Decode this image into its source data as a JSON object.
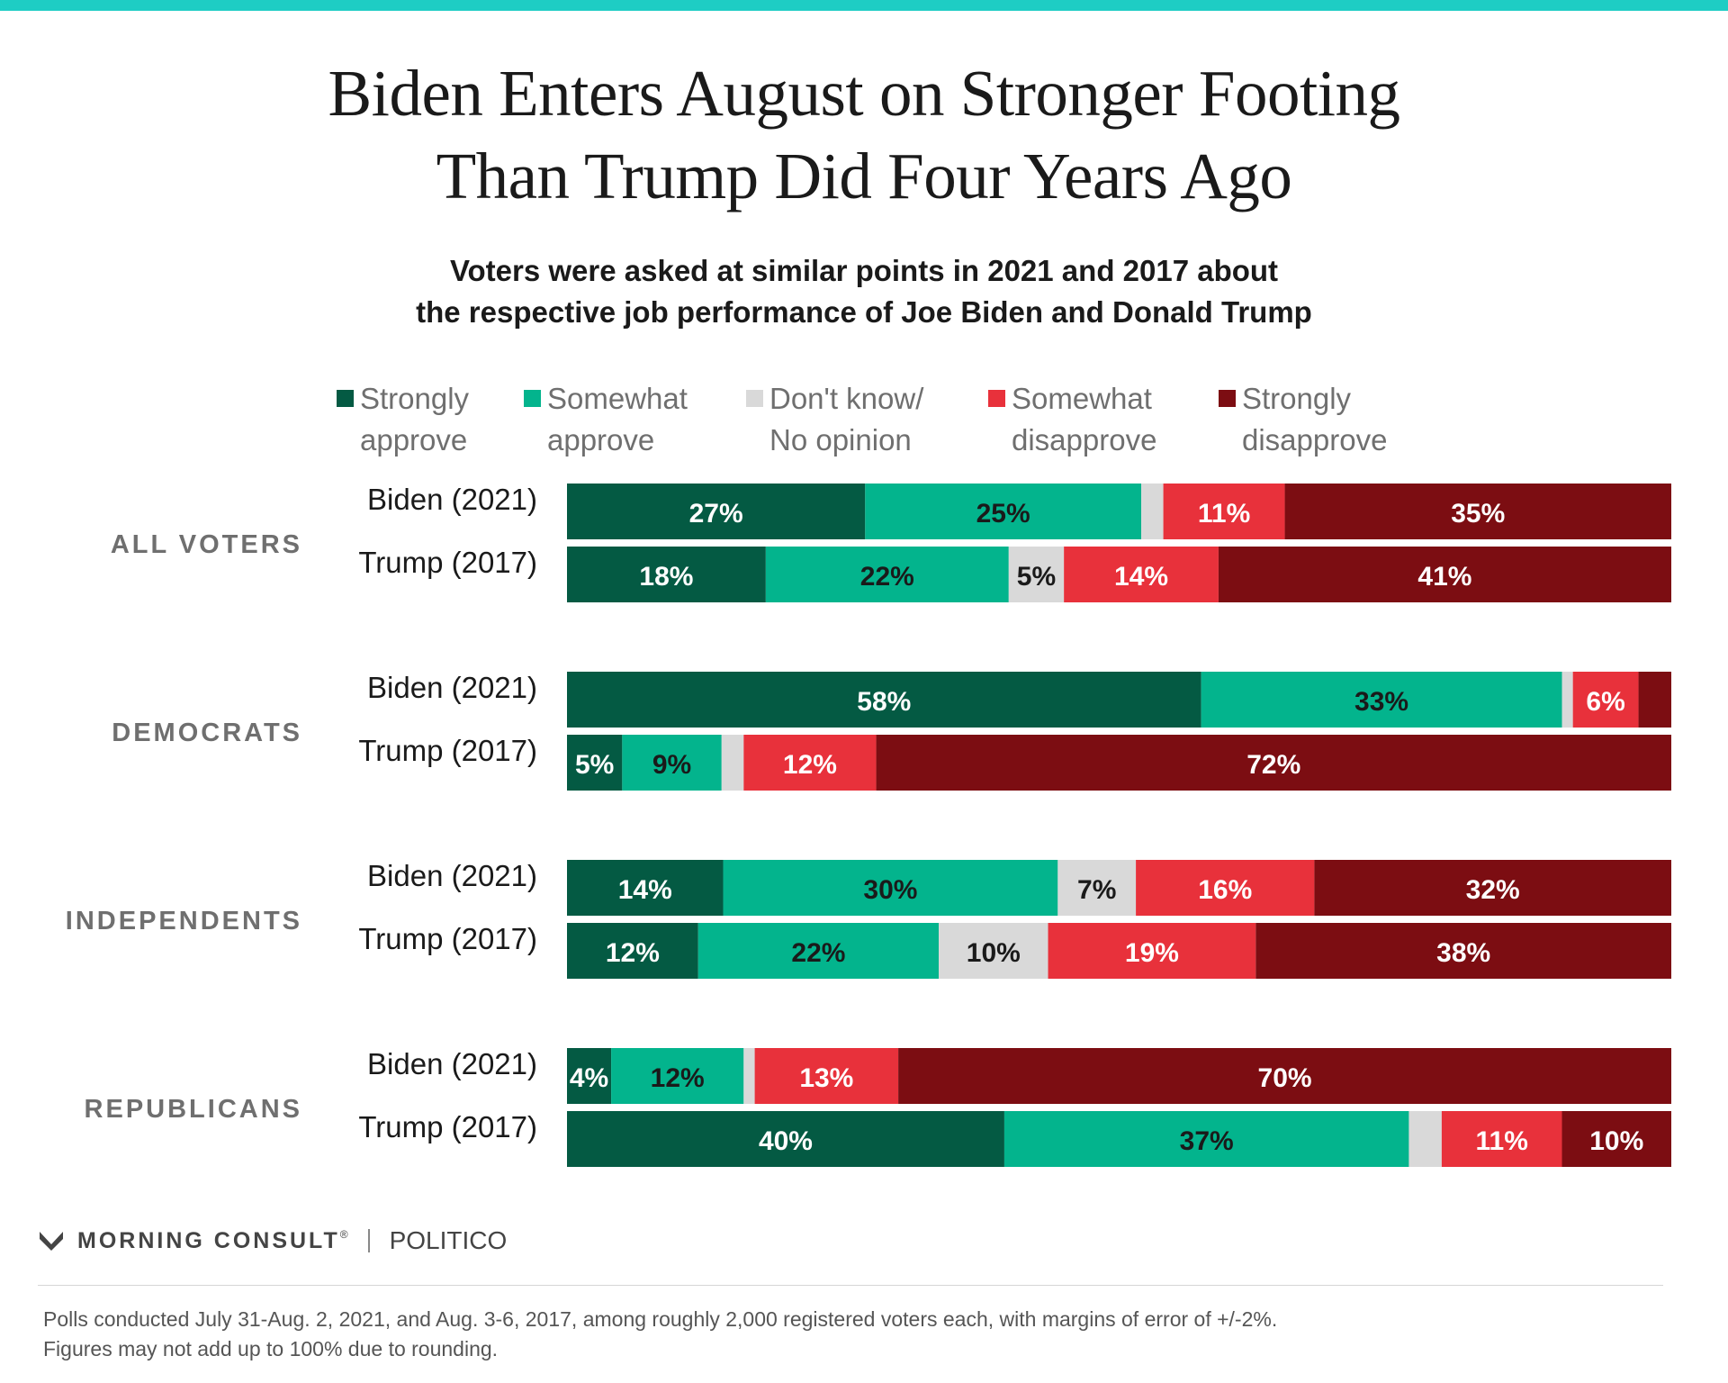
{
  "title_lines": [
    "Biden Enters August on Stronger Footing",
    "Than Trump Did Four Years Ago"
  ],
  "subtitle_lines": [
    "Voters were asked at similar points in 2021 and 2017 about",
    "the respective job performance of Joe Biden and Donald Trump"
  ],
  "colors": {
    "strongly_approve": "#045a43",
    "somewhat_approve": "#03b48d",
    "dont_know": "#d9d9d9",
    "somewhat_disapprove": "#e8313b",
    "strongly_disapprove": "#7c0d12",
    "accent_stripe": "#1ecdc4"
  },
  "legend": [
    {
      "line1": "Strongly",
      "line2": "approve",
      "color": "#045a43"
    },
    {
      "line1": "Somewhat",
      "line2": "approve",
      "color": "#03b48d"
    },
    {
      "line1": "Don't know/",
      "line2": "No opinion",
      "color": "#d9d9d9"
    },
    {
      "line1": "Somewhat",
      "line2": "disapprove",
      "color": "#e8313b"
    },
    {
      "line1": "Strongly",
      "line2": "disapprove",
      "color": "#7c0d12"
    }
  ],
  "chart_data": {
    "type": "bar",
    "orientation": "horizontal",
    "stacked": "100%",
    "series_names": [
      "Strongly approve",
      "Somewhat approve",
      "Don't know/No opinion",
      "Somewhat disapprove",
      "Strongly disapprove"
    ],
    "groups": [
      {
        "name": "ALL VOTERS",
        "rows": [
          {
            "label": "Biden (2021)",
            "values": [
              27,
              25,
              2,
              11,
              35
            ],
            "labels": [
              "27%",
              "25%",
              "",
              "11%",
              "35%"
            ]
          },
          {
            "label": "Trump (2017)",
            "values": [
              18,
              22,
              5,
              14,
              41
            ],
            "labels": [
              "18%",
              "22%",
              "5%",
              "14%",
              "41%"
            ]
          }
        ]
      },
      {
        "name": "DEMOCRATS",
        "rows": [
          {
            "label": "Biden (2021)",
            "values": [
              58,
              33,
              1,
              6,
              3
            ],
            "labels": [
              "58%",
              "33%",
              "",
              "6%",
              ""
            ]
          },
          {
            "label": "Trump (2017)",
            "values": [
              5,
              9,
              2,
              12,
              72
            ],
            "labels": [
              "5%",
              "9%",
              "",
              "12%",
              "72%"
            ]
          }
        ]
      },
      {
        "name": "INDEPENDENTS",
        "rows": [
          {
            "label": "Biden (2021)",
            "values": [
              14,
              30,
              7,
              16,
              32
            ],
            "labels": [
              "14%",
              "30%",
              "7%",
              "16%",
              "32%"
            ]
          },
          {
            "label": "Trump (2017)",
            "values": [
              12,
              22,
              10,
              19,
              38
            ],
            "labels": [
              "12%",
              "22%",
              "10%",
              "19%",
              "38%"
            ]
          }
        ]
      },
      {
        "name": "REPUBLICANS",
        "rows": [
          {
            "label": "Biden (2021)",
            "values": [
              4,
              12,
              1,
              13,
              70
            ],
            "labels": [
              "4%",
              "12%",
              "",
              "13%",
              "70%"
            ]
          },
          {
            "label": "Trump (2017)",
            "values": [
              40,
              37,
              3,
              11,
              10
            ],
            "labels": [
              "40%",
              "37%",
              "",
              "11%",
              "10%"
            ]
          }
        ]
      }
    ],
    "label_colors": [
      "#ffffff",
      "#1a1a1a",
      "#1a1a1a",
      "#ffffff",
      "#ffffff"
    ]
  },
  "branding": {
    "logo_text": "MORNING CONSULT",
    "logo_mark": "®",
    "partner": "POLITICO"
  },
  "footnote_lines": [
    "Polls conducted July 31-Aug. 2, 2021, and Aug. 3-6, 2017, among roughly 2,000 registered voters each, with margins of error of +/-2%.",
    "Figures may not add up to 100% due to rounding."
  ]
}
